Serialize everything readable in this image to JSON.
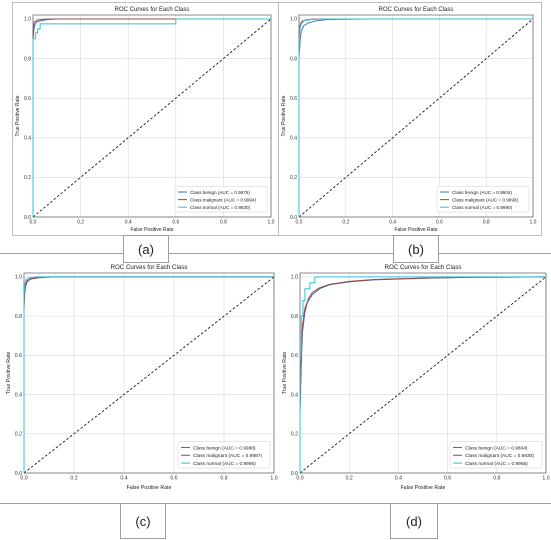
{
  "captions": [
    "(a)",
    "(b)",
    "(c)",
    "(d)"
  ],
  "colors": {
    "benign": "#3b6fb6",
    "malignant": "#9b4a4a",
    "normal": "#30c0d6",
    "diagonal": "#000000",
    "grid": "#d9d9d9"
  },
  "chart_data": [
    {
      "type": "line",
      "title": "ROC Curves for Each Class",
      "xlabel": "False Positive Rate",
      "ylabel": "True Positive Rate",
      "xlim": [
        0,
        1
      ],
      "ylim": [
        0,
        1.02
      ],
      "xticks": [
        "0.0",
        "0.2",
        "0.4",
        "0.6",
        "0.8",
        "1.0"
      ],
      "yticks": [
        "0.0",
        "0.2",
        "0.4",
        "0.6",
        "0.8",
        "1.0"
      ],
      "grid": true,
      "legend_position": "bottom-right",
      "series": [
        {
          "name": "Class benign (AUC = 0.9975)",
          "color": "#3b6fb6",
          "x": [
            0,
            0,
            0.004,
            0.008,
            0.015,
            0.03,
            0.06,
            0.1,
            0.18,
            1.0
          ],
          "y": [
            0,
            0.9,
            0.95,
            0.97,
            0.985,
            0.99,
            0.997,
            1.0,
            1.0,
            1.0
          ]
        },
        {
          "name": "Class malignant (AUC = 0.9994)",
          "color": "#9b4a4a",
          "x": [
            0,
            0,
            0.003,
            0.006,
            0.012,
            0.02,
            0.04,
            0.08,
            0.15,
            1.0
          ],
          "y": [
            0,
            0.93,
            0.97,
            0.985,
            0.99,
            0.995,
            0.998,
            1.0,
            1.0,
            1.0
          ]
        },
        {
          "name": "Class normal (AUC = 0.9830)",
          "color": "#30c0d6",
          "x": [
            0,
            0,
            0.01,
            0.01,
            0.02,
            0.02,
            0.03,
            0.03,
            0.6,
            0.6,
            1.0
          ],
          "y": [
            0,
            0.9,
            0.9,
            0.93,
            0.93,
            0.95,
            0.95,
            0.975,
            0.975,
            1.0,
            1.0
          ]
        }
      ]
    },
    {
      "type": "line",
      "title": "ROC Curves for Each Class",
      "xlabel": "False Positive Rate",
      "ylabel": "True Positive Rate",
      "xlim": [
        0,
        1
      ],
      "ylim": [
        0,
        1.02
      ],
      "xticks": [
        "0.0",
        "0.2",
        "0.4",
        "0.6",
        "0.8",
        "1.0"
      ],
      "yticks": [
        "0.0",
        "0.2",
        "0.4",
        "0.6",
        "0.8",
        "1.0"
      ],
      "grid": true,
      "legend_position": "bottom-right",
      "series": [
        {
          "name": "Class benign (AUC = 0.9904)",
          "color": "#3b6fb6",
          "x": [
            0,
            0,
            0.005,
            0.01,
            0.02,
            0.04,
            0.07,
            0.12,
            0.3,
            1.0
          ],
          "y": [
            0,
            0.8,
            0.9,
            0.94,
            0.965,
            0.98,
            0.99,
            0.997,
            1.0,
            1.0
          ]
        },
        {
          "name": "Class malignant (AUC = 0.9998)",
          "color": "#9b4a4a",
          "x": [
            0,
            0,
            0.003,
            0.008,
            0.015,
            0.03,
            0.06,
            0.1,
            1.0
          ],
          "y": [
            0,
            0.9,
            0.96,
            0.98,
            0.99,
            0.995,
            0.999,
            1.0,
            1.0
          ]
        },
        {
          "name": "Class normal (AUC = 0.9990)",
          "color": "#30c0d6",
          "x": [
            0,
            0,
            0.004,
            0.01,
            0.02,
            0.05,
            0.1,
            1.0
          ],
          "y": [
            0,
            0.88,
            0.95,
            0.975,
            0.99,
            0.997,
            1.0,
            1.0
          ]
        }
      ]
    },
    {
      "type": "line",
      "title": "ROC Curves for Each Class",
      "xlabel": "False Positive Rate",
      "ylabel": "True Positive Rate",
      "xlim": [
        0,
        1
      ],
      "ylim": [
        0,
        1.02
      ],
      "xticks": [
        "0.0",
        "0.2",
        "0.4",
        "0.6",
        "0.8",
        "1.0"
      ],
      "yticks": [
        "0.0",
        "0.2",
        "0.4",
        "0.6",
        "0.8",
        "1.0"
      ],
      "grid": true,
      "legend_position": "bottom-right",
      "series": [
        {
          "name": "Class benign (AUC = 0.9988)",
          "color": "#3b6fb6",
          "x": [
            0,
            0,
            0.003,
            0.006,
            0.012,
            0.025,
            0.05,
            0.1,
            1.0
          ],
          "y": [
            0,
            0.85,
            0.93,
            0.96,
            0.98,
            0.99,
            0.997,
            1.0,
            1.0
          ]
        },
        {
          "name": "Class malignant (AUC = 0.9987)",
          "color": "#9b4a4a",
          "x": [
            0,
            0,
            0.003,
            0.007,
            0.014,
            0.03,
            0.06,
            0.12,
            1.0
          ],
          "y": [
            0,
            0.84,
            0.92,
            0.955,
            0.978,
            0.99,
            0.996,
            1.0,
            1.0
          ]
        },
        {
          "name": "Class normal (AUC = 0.9995)",
          "color": "#30c0d6",
          "x": [
            0,
            0,
            0.003,
            0.008,
            0.02,
            0.05,
            1.0
          ],
          "y": [
            0,
            0.9,
            0.96,
            0.985,
            0.995,
            1.0,
            1.0
          ]
        }
      ]
    },
    {
      "type": "line",
      "title": "ROC Curves for Each Class",
      "xlabel": "False Positive Rate",
      "ylabel": "True Positive Rate",
      "xlim": [
        0,
        1
      ],
      "ylim": [
        0,
        1.02
      ],
      "xticks": [
        "0.0",
        "0.2",
        "0.4",
        "0.6",
        "0.8",
        "1.0"
      ],
      "yticks": [
        "0.0",
        "0.2",
        "0.4",
        "0.6",
        "0.8",
        "1.0"
      ],
      "grid": true,
      "legend_position": "bottom-right",
      "series": [
        {
          "name": "Class benign (AUC = 0.9804)",
          "color": "#3b6fb6",
          "x": [
            0,
            0,
            0.005,
            0.01,
            0.02,
            0.03,
            0.05,
            0.08,
            0.12,
            0.2,
            0.3,
            0.5,
            0.7,
            1.0
          ],
          "y": [
            0,
            0.3,
            0.55,
            0.72,
            0.82,
            0.87,
            0.91,
            0.94,
            0.96,
            0.975,
            0.985,
            0.993,
            0.998,
            1.0
          ]
        },
        {
          "name": "Class malignant (AUC = 0.9830)",
          "color": "#9b4a4a",
          "x": [
            0,
            0,
            0.005,
            0.01,
            0.02,
            0.035,
            0.05,
            0.08,
            0.12,
            0.2,
            0.3,
            0.5,
            0.7,
            1.0
          ],
          "y": [
            0,
            0.35,
            0.6,
            0.75,
            0.84,
            0.89,
            0.92,
            0.945,
            0.962,
            0.977,
            0.987,
            0.994,
            0.998,
            1.0
          ]
        },
        {
          "name": "Class normal (AUC = 0.9965)",
          "color": "#30c0d6",
          "x": [
            0,
            0,
            0.005,
            0.005,
            0.012,
            0.012,
            0.02,
            0.02,
            0.04,
            0.04,
            0.06,
            0.06,
            1.0
          ],
          "y": [
            0,
            0.6,
            0.6,
            0.8,
            0.8,
            0.88,
            0.88,
            0.94,
            0.94,
            0.97,
            0.97,
            1.0,
            1.0
          ]
        }
      ]
    }
  ]
}
